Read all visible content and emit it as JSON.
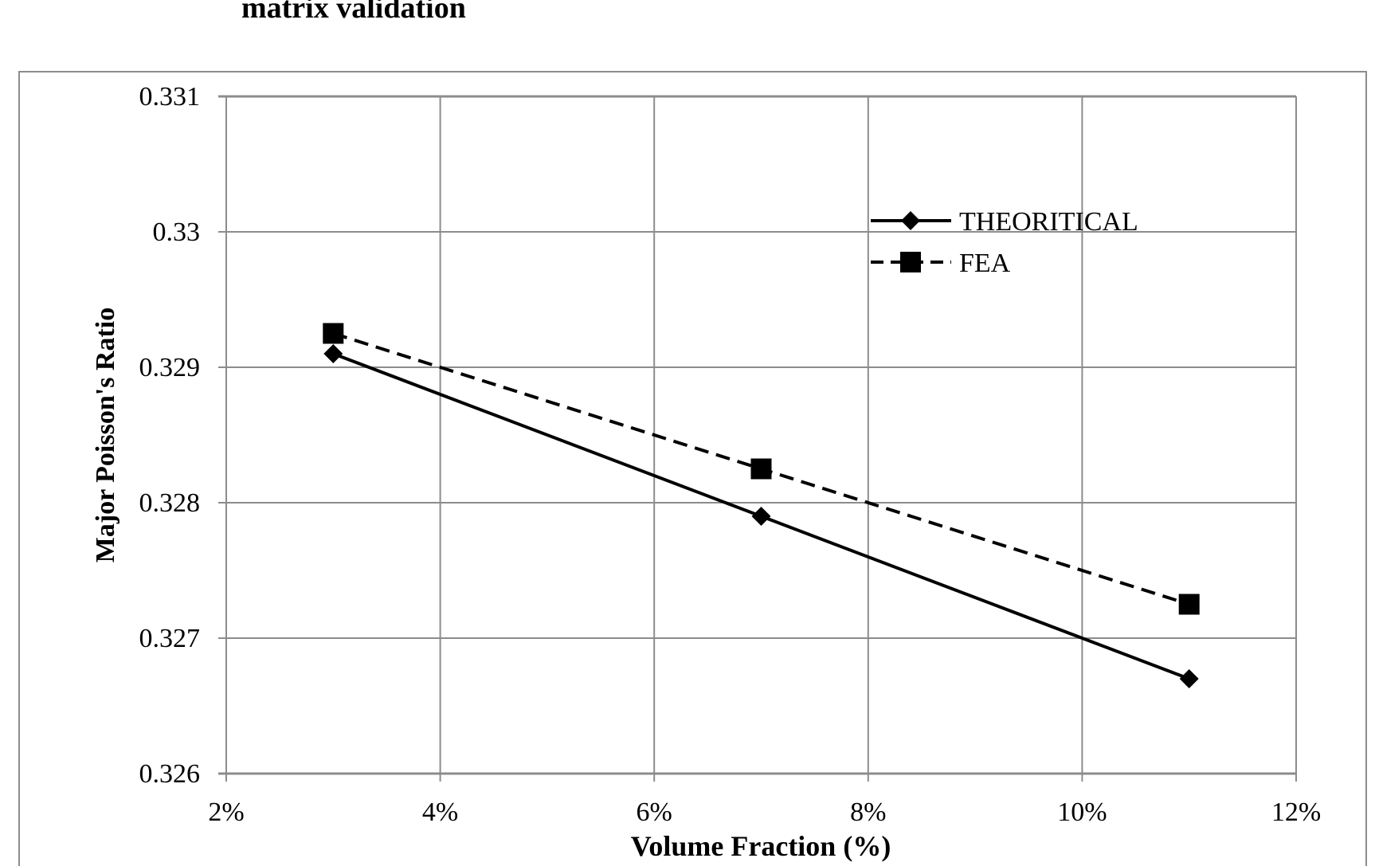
{
  "caption_fragment": "matrix validation",
  "chart_data": {
    "type": "line",
    "title": "",
    "xlabel": "Volume Fraction (%)",
    "ylabel": "Major Poisson's Ratio",
    "xlim": [
      0.02,
      0.12
    ],
    "ylim": [
      0.326,
      0.331
    ],
    "x_ticks": [
      "2%",
      "4%",
      "6%",
      "8%",
      "10%",
      "12%"
    ],
    "y_ticks": [
      "0.326",
      "0.327",
      "0.328",
      "0.329",
      "0.33",
      "0.331"
    ],
    "grid": true,
    "legend_position": "top-right",
    "x": [
      0.03,
      0.07,
      0.11
    ],
    "series": [
      {
        "name": "THEORITICAL",
        "values": [
          0.3291,
          0.3279,
          0.3267
        ],
        "marker": "diamond",
        "line": "solid",
        "color": "#000000"
      },
      {
        "name": "FEA",
        "values": [
          0.32925,
          0.32825,
          0.32725
        ],
        "marker": "square",
        "line": "dashed",
        "color": "#000000"
      }
    ]
  }
}
